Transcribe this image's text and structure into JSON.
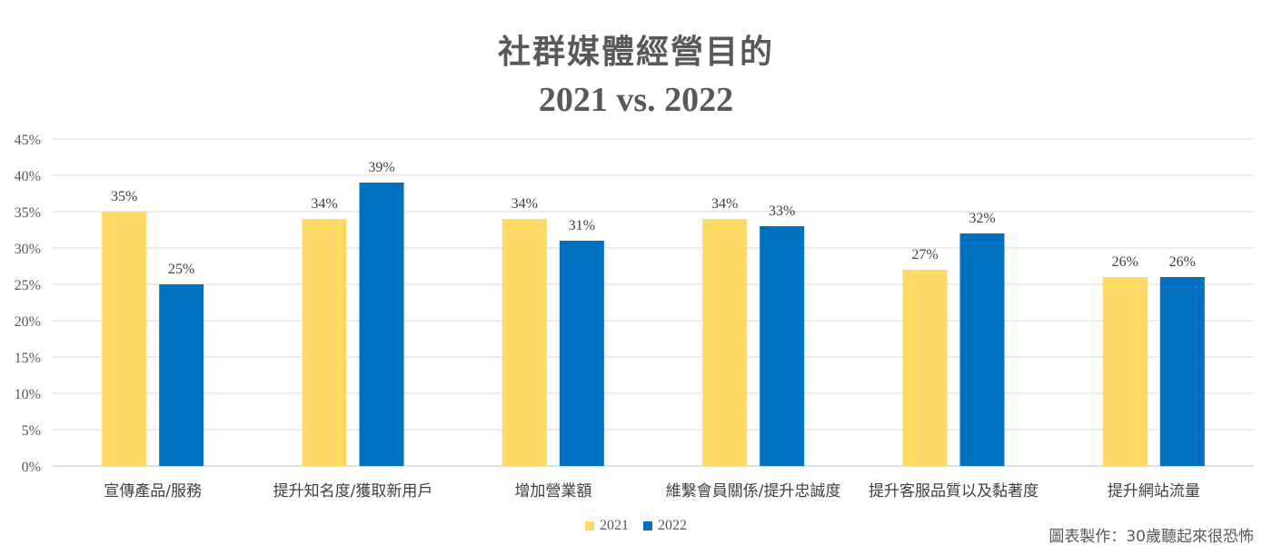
{
  "chart_data": {
    "type": "bar",
    "title": "社群媒體經營目的",
    "subtitle": "2021 vs. 2022",
    "categories": [
      "宣傳產品/服務",
      "提升知名度/獲取新用戶",
      "增加營業額",
      "維繫會員關係/提升忠誠度",
      "提升客服品質以及黏著度",
      "提升網站流量"
    ],
    "series": [
      {
        "name": "2021",
        "color": "#FFD966",
        "values": [
          35,
          34,
          34,
          34,
          27,
          26
        ]
      },
      {
        "name": "2022",
        "color": "#0070C0",
        "values": [
          25,
          39,
          31,
          33,
          32,
          26
        ]
      }
    ],
    "ylim": [
      0,
      45
    ],
    "yticks": [
      0,
      5,
      10,
      15,
      20,
      25,
      30,
      35,
      40,
      45
    ],
    "unit": "%",
    "grid": true,
    "legend": "bottom"
  },
  "credit": "圖表製作：30歲聽起來很恐怖"
}
